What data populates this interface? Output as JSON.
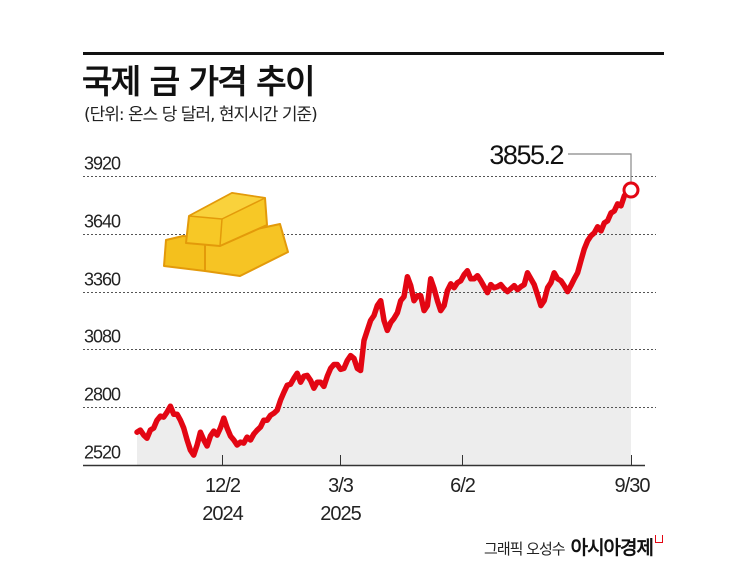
{
  "header": {
    "title": "국제 금 가격 추이",
    "subtitle": "(단위: 온스 당 달러, 현지시간 기준)"
  },
  "credit": {
    "author": "그래픽 오성수",
    "brand": "아시아경제"
  },
  "colors": {
    "line": "#e30613",
    "area": "#ededed",
    "grid": "#555555",
    "gold": "#f6c323"
  },
  "icons": [
    "gold-bars-icon"
  ],
  "chart_data": {
    "type": "line",
    "title": "국제 금 가격 추이",
    "subtitle": "(단위: 온스 당 달러, 현지시간 기준)",
    "xlabel": "",
    "ylabel": "온스 당 달러",
    "ylim": [
      2520,
      3920
    ],
    "yticks": [
      2520,
      2800,
      3080,
      3360,
      3640,
      3920
    ],
    "ytick_labels": [
      "2520",
      "2800",
      "3080",
      "3360",
      "3640",
      "3920"
    ],
    "xtick_labels": [
      {
        "label": "12/2",
        "sub": "2024"
      },
      {
        "label": "3/3",
        "sub": "2025"
      },
      {
        "label": "6/2",
        "sub": ""
      },
      {
        "label": "9/30",
        "sub": ""
      }
    ],
    "grid": true,
    "legend": "none",
    "annotation": {
      "label": "3855.2",
      "value": 3855.2,
      "date": "9/30"
    },
    "series": [
      {
        "name": "금 가격",
        "approx_values": [
          2679,
          2689,
          2665,
          2650,
          2689,
          2699,
          2737,
          2757,
          2752,
          2776,
          2805,
          2766,
          2766,
          2737,
          2699,
          2641,
          2592,
          2568,
          2617,
          2679,
          2641,
          2612,
          2660,
          2684,
          2665,
          2699,
          2747,
          2699,
          2660,
          2641,
          2617,
          2631,
          2626,
          2655,
          2641,
          2670,
          2689,
          2704,
          2737,
          2737,
          2761,
          2771,
          2786,
          2834,
          2872,
          2906,
          2911,
          2940,
          2964,
          2921,
          2950,
          2954,
          2930,
          2892,
          2921,
          2921,
          2901,
          2950,
          2988,
          3007,
          3007,
          2983,
          2988,
          3026,
          3050,
          3036,
          2988,
          2978,
          3123,
          3172,
          3220,
          3244,
          3292,
          3316,
          3220,
          3172,
          3210,
          3230,
          3258,
          3316,
          3336,
          3432,
          3389,
          3316,
          3340,
          3340,
          3268,
          3292,
          3422,
          3374,
          3316,
          3268,
          3292,
          3365,
          3398,
          3379,
          3403,
          3413,
          3442,
          3461,
          3422,
          3422,
          3437,
          3413,
          3384,
          3355,
          3394,
          3379,
          3384,
          3394,
          3374,
          3360,
          3374,
          3389,
          3369,
          3384,
          3394,
          3451,
          3422,
          3394,
          3345,
          3292,
          3316,
          3379,
          3403,
          3451,
          3422,
          3413,
          3389,
          3360,
          3389,
          3422,
          3451,
          3509,
          3567,
          3606,
          3630,
          3645,
          3674,
          3654,
          3693,
          3703,
          3741,
          3751,
          3785,
          3775,
          3823,
          3847,
          3855.2
        ]
      }
    ]
  }
}
